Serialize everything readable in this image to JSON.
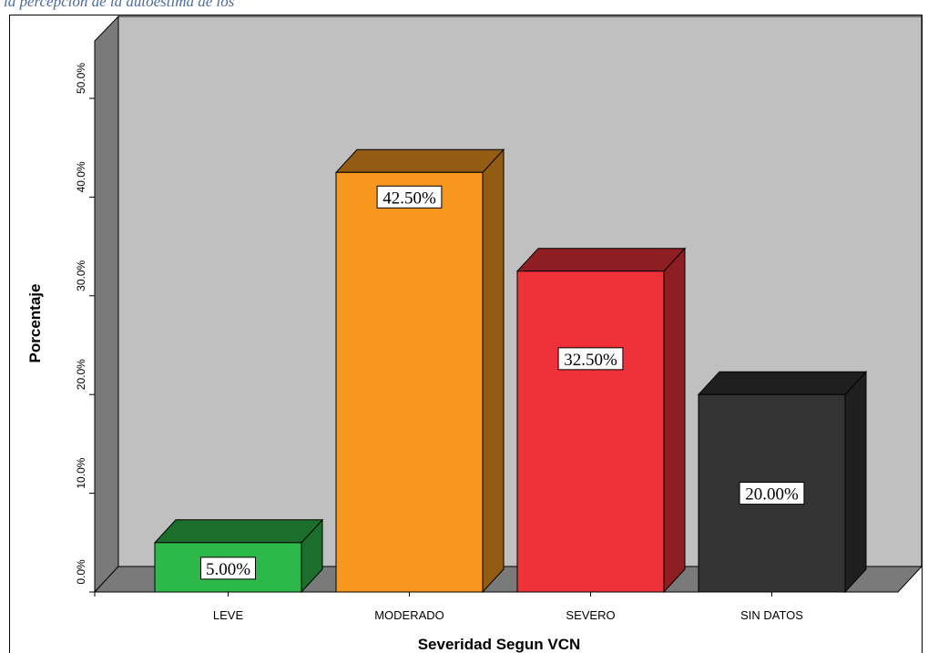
{
  "caption": "la percepción de la autoestima de los",
  "chart_data": {
    "type": "bar",
    "categories": [
      "LEVE",
      "MODERADO",
      "SEVERO",
      "SIN DATOS"
    ],
    "values": [
      5.0,
      42.5,
      32.5,
      20.0
    ],
    "data_labels": [
      "5.00%",
      "42.50%",
      "32.50%",
      "20.00%"
    ],
    "colors": [
      "#2db84a",
      "#f7971e",
      "#ef323a",
      "#333333"
    ],
    "yticks": [
      "0.0%",
      "10.0%",
      "20.0%",
      "30.0%",
      "40.0%",
      "50.0%"
    ],
    "ylim": [
      0,
      50
    ],
    "xlabel": "Severidad  Segun VCN",
    "ylabel": "Porcentaje",
    "grid": false,
    "style": "3d-bar"
  }
}
